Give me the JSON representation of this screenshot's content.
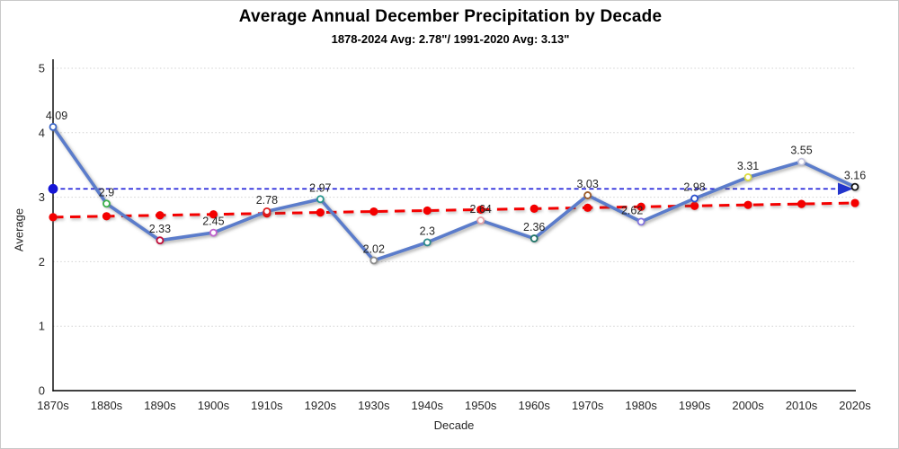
{
  "page": {
    "background": "#ffffff",
    "border_color": "#c9c9c9"
  },
  "chart_data": {
    "type": "line",
    "title": "Average Annual December Precipitation by Decade",
    "subtitle": "1878-2024 Avg: 2.78\"/ 1991-2020 Avg: 3.13\"",
    "xlabel": "Decade",
    "ylabel": "Average",
    "ylim": [
      0,
      5
    ],
    "ytick_step": 1,
    "yticks": [
      "0",
      "1",
      "2",
      "3",
      "4",
      "5"
    ],
    "grid": "horizontal-dotted",
    "gridline_color": "#d2d2d2",
    "axis_color": "#000000",
    "tick_label_color": "#262626",
    "data_label_color": "#262626",
    "categories": [
      "1870s",
      "1880s",
      "1890s",
      "1900s",
      "1910s",
      "1920s",
      "1930s",
      "1940s",
      "1950s",
      "1960s",
      "1970s",
      "1980s",
      "1990s",
      "2000s",
      "2010s",
      "2020s"
    ],
    "series": [
      {
        "name": "decade-average",
        "type": "line",
        "color": "#5B7CCB",
        "line_width": 3.6,
        "values": [
          4.09,
          2.9,
          2.33,
          2.45,
          2.78,
          2.97,
          2.02,
          2.3,
          2.64,
          2.36,
          3.03,
          2.62,
          2.98,
          3.31,
          3.55,
          3.16
        ],
        "labels": [
          "4.09",
          "2.9",
          "2.33",
          "2.45",
          "2.78",
          "2.97",
          "2.02",
          "2.3",
          "2.64",
          "2.36",
          "3.03",
          "2.62",
          "2.98",
          "3.31",
          "3.55",
          "3.16"
        ],
        "marker_style": "open-circle",
        "marker_colors": [
          "#3E68C8",
          "#3CB04A",
          "#C2103C",
          "#C264CE",
          "#E02020",
          "#27968E",
          "#8E8E8E",
          "#2E8B8B",
          "#E8A2A8",
          "#1F7468",
          "#9C5A28",
          "#8272DE",
          "#2D51CE",
          "#DCDC3C",
          "#C6C6DE",
          "#141414"
        ],
        "label_dx": {
          "0": 4,
          "11": -10
        }
      },
      {
        "name": "linear-trend",
        "type": "dashed-trend-line",
        "color": "#F40000",
        "dot_style": "solid-circle-every-decade",
        "start": 2.69,
        "end": 2.91
      },
      {
        "name": "reference-average-1991-2020",
        "type": "dashed-reference-line",
        "color": "#1B1BD8",
        "value": 3.13,
        "start_marker": "solid-blue-dot",
        "end_marker": "right-arrow"
      }
    ]
  }
}
